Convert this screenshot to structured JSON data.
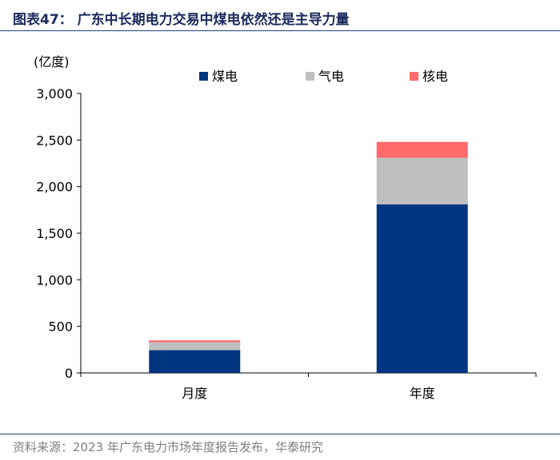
{
  "figure": {
    "title": "图表47： 广东中长期电力交易中煤电依然还是主导力量",
    "source": "资料来源：2023 年广东电力市场年度报告发布，华泰研究"
  },
  "chart_data": {
    "type": "bar",
    "stacked": true,
    "title": "",
    "xlabel": "",
    "ylabel": "(亿度)",
    "categories": [
      "月度",
      "年度"
    ],
    "series": [
      {
        "name": "煤电",
        "values": [
          245,
          1810
        ],
        "color": "#003580"
      },
      {
        "name": "气电",
        "values": [
          85,
          500
        ],
        "color": "#bfbfbf"
      },
      {
        "name": "核电",
        "values": [
          20,
          170
        ],
        "color": "#ff6a6a"
      }
    ],
    "ylim": [
      0,
      3000
    ],
    "yticks": [
      0,
      500,
      1000,
      1500,
      2000,
      2500,
      3000
    ],
    "ytick_labels": [
      "0",
      "500",
      "1,000",
      "1,500",
      "2,000",
      "2,500",
      "3,000"
    ],
    "grid": false,
    "legend_position": "top"
  }
}
